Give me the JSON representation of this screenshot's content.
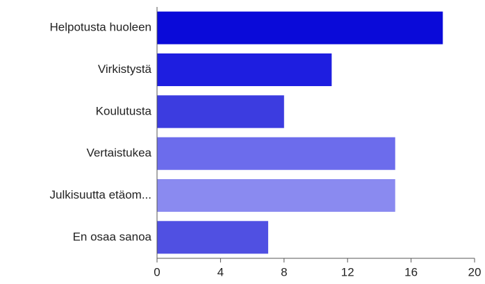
{
  "chart_data": {
    "type": "bar",
    "orientation": "horizontal",
    "categories": [
      "Helpotusta huoleen",
      "Virkistystä",
      "Koulutusta",
      "Vertaistukea",
      "Julkisuutta etäom...",
      "En osaa sanoa"
    ],
    "values": [
      18,
      11,
      8,
      15,
      15,
      7
    ],
    "colors": [
      "#0a0ad9",
      "#1e1ee0",
      "#3c3ce0",
      "#6c6cec",
      "#8a8af0",
      "#5050e2"
    ],
    "xlim": [
      0,
      20
    ],
    "xticks": [
      0,
      4,
      8,
      12,
      16,
      20
    ],
    "grid": false
  }
}
